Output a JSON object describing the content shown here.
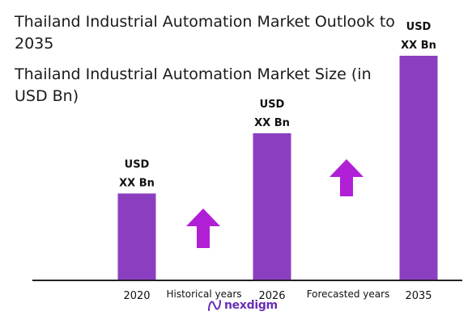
{
  "title": "Thailand Industrial Automation Market Outlook to 2035",
  "chart_data": {
    "type": "bar",
    "title": "Thailand Industrial Automation Market Size (in USD Bn)",
    "categories": [
      "2020",
      "2026",
      "2035"
    ],
    "values": [
      1,
      1.7,
      2.6
    ],
    "data_labels": [
      [
        "USD",
        "XX Bn"
      ],
      [
        "USD",
        "XX Bn"
      ],
      [
        "USD",
        "XX Bn"
      ]
    ],
    "period_labels": [
      "Historical years",
      "Forecasted years"
    ],
    "ylim": [
      0,
      2.8
    ],
    "grid": false,
    "legend": "none"
  },
  "colors": {
    "bar": "#8b3fc0",
    "arrow": "#b01fd6",
    "axis": "#222222",
    "text": "#1a1a1a"
  },
  "brand": {
    "name": "nexdigm",
    "icon": "nexdigm-logo-icon"
  }
}
